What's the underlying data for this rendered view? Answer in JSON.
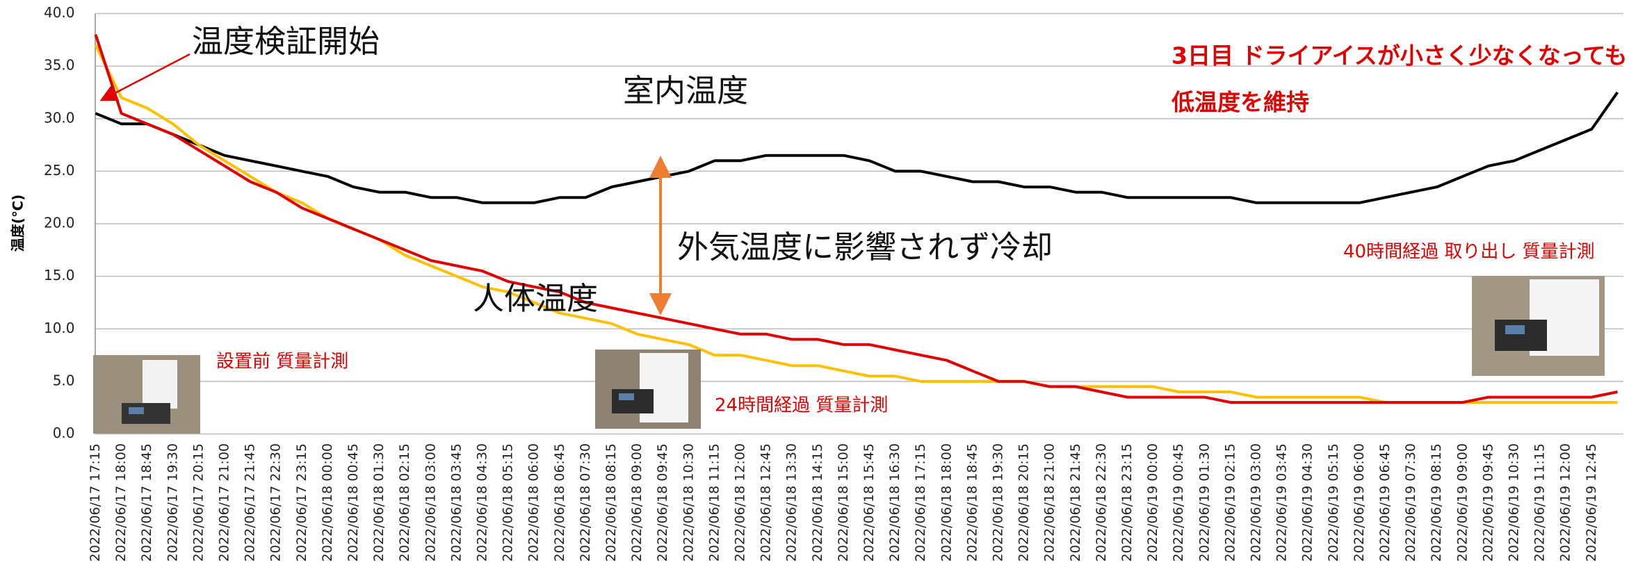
{
  "chart_data": {
    "type": "line",
    "y_label": "温度(℃)",
    "categories": [
      "2022/06/17 17:15",
      "2022/06/17 18:00",
      "2022/06/17 18:45",
      "2022/06/17 19:30",
      "2022/06/17 20:15",
      "2022/06/17 21:00",
      "2022/06/17 21:45",
      "2022/06/17 22:30",
      "2022/06/17 23:15",
      "2022/06/18 00:00",
      "2022/06/18 00:45",
      "2022/06/18 01:30",
      "2022/06/18 02:15",
      "2022/06/18 03:00",
      "2022/06/18 03:45",
      "2022/06/18 04:30",
      "2022/06/18 05:15",
      "2022/06/18 06:00",
      "2022/06/18 06:45",
      "2022/06/18 07:30",
      "2022/06/18 08:15",
      "2022/06/18 09:00",
      "2022/06/18 09:45",
      "2022/06/18 10:30",
      "2022/06/18 11:15",
      "2022/06/18 12:00",
      "2022/06/18 12:45",
      "2022/06/18 13:30",
      "2022/06/18 14:15",
      "2022/06/18 15:00",
      "2022/06/18 15:45",
      "2022/06/18 16:30",
      "2022/06/18 17:15",
      "2022/06/18 18:00",
      "2022/06/18 18:45",
      "2022/06/18 19:30",
      "2022/06/18 20:15",
      "2022/06/18 21:00",
      "2022/06/18 21:45",
      "2022/06/18 22:30",
      "2022/06/18 23:15",
      "2022/06/19 00:00",
      "2022/06/19 00:45",
      "2022/06/19 01:30",
      "2022/06/19 02:15",
      "2022/06/19 03:00",
      "2022/06/19 03:45",
      "2022/06/19 04:30",
      "2022/06/19 05:15",
      "2022/06/19 06:00",
      "2022/06/19 06:45",
      "2022/06/19 07:30",
      "2022/06/19 08:15",
      "2022/06/19 09:00",
      "2022/06/19 09:45",
      "2022/06/19 10:30",
      "2022/06/19 11:15",
      "2022/06/19 12:00",
      "2022/06/19 12:45",
      null
    ],
    "series": [
      {
        "color": "#000000",
        "values": [
          30.5,
          29.5,
          29.5,
          28.5,
          27.5,
          26.5,
          26,
          25.5,
          25,
          24.5,
          23.5,
          23,
          23,
          22.5,
          22.5,
          22,
          22,
          22,
          22.5,
          22.5,
          23.5,
          24,
          24.5,
          25,
          26,
          26,
          26.5,
          26.5,
          26.5,
          26.5,
          26,
          25,
          25,
          24.5,
          24,
          24,
          23.5,
          23.5,
          23,
          23,
          22.5,
          22.5,
          22.5,
          22.5,
          22.5,
          22,
          22,
          22,
          22,
          22,
          22.5,
          23,
          23.5,
          24.5,
          25.5,
          26,
          27,
          28,
          29,
          32.5
        ]
      },
      {
        "color": "#ffc000",
        "values": [
          37,
          32,
          31,
          29.5,
          27.5,
          26,
          24.5,
          23,
          22,
          20.5,
          19.5,
          18.5,
          17,
          16,
          15,
          14,
          13.5,
          12.5,
          11.5,
          11,
          10.5,
          9.5,
          9,
          8.5,
          7.5,
          7.5,
          7,
          6.5,
          6.5,
          6,
          5.5,
          5.5,
          5,
          5,
          5,
          5,
          5,
          4.5,
          4.5,
          4.5,
          4.5,
          4.5,
          4,
          4,
          4,
          3.5,
          3.5,
          3.5,
          3.5,
          3.5,
          3,
          3,
          3,
          3,
          3,
          3,
          3,
          3,
          3,
          3
        ]
      },
      {
        "color": "#e00000",
        "values": [
          38,
          30.5,
          29.5,
          28.5,
          27,
          25.5,
          24,
          23,
          21.5,
          20.5,
          19.5,
          18.5,
          17.5,
          16.5,
          16,
          15.5,
          14.5,
          14,
          13.5,
          12.5,
          12,
          11.5,
          11,
          10.5,
          10,
          9.5,
          9.5,
          9,
          9,
          8.5,
          8.5,
          8,
          7.5,
          7,
          6,
          5,
          5,
          4.5,
          4.5,
          4,
          3.5,
          3.5,
          3.5,
          3.5,
          3,
          3,
          3,
          3,
          3,
          3,
          3,
          3,
          3,
          3,
          3.5,
          3.5,
          3.5,
          3.5,
          3.5,
          4
        ]
      }
    ],
    "ylim": [
      0,
      40
    ],
    "yticks": [
      {
        "value": 0,
        "label": "0.0"
      },
      {
        "value": 5,
        "label": "5.0"
      },
      {
        "value": 10,
        "label": "10.0"
      },
      {
        "value": 15,
        "label": "15.0"
      },
      {
        "value": 20,
        "label": "20.0"
      },
      {
        "value": 25,
        "label": "25.0"
      },
      {
        "value": 30,
        "label": "30.0"
      },
      {
        "value": 35,
        "label": "35.0"
      },
      {
        "value": 40,
        "label": "40.0"
      }
    ],
    "grid": true,
    "annotations": [
      "温度検証開始",
      "室内温度",
      "外気温度に影響されず冷却",
      "人体温度",
      "設置前 質量計測",
      "24時間経過 質量計測",
      "40時間経過 取り出し 質量計測",
      "3日目 ドライアイスが小さく少なくなっても",
      "低温度を維持"
    ]
  }
}
